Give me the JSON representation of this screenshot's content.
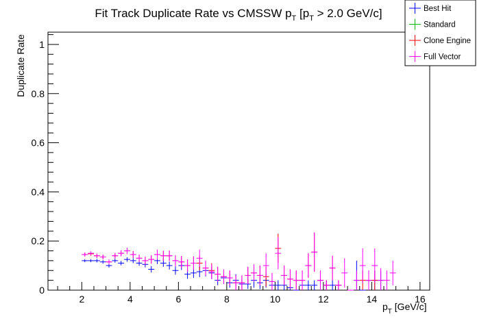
{
  "chart_data": {
    "type": "scatter",
    "title": "Fit Track Duplicate Rate vs CMSSW p_T [p_T > 2.0 GeV/c]",
    "title_main": "Fit Track Duplicate Rate vs CMSSW p",
    "title_sub1": "T",
    "title_mid": " [p",
    "title_sub2": "T",
    "title_end": " > 2.0 GeV/c]",
    "xlabel": "p_T [GeV/c]",
    "xlabel_main": "p",
    "xlabel_sub": "T",
    "xlabel_end": " [GeV/c]",
    "ylabel": "Duplicate Rate",
    "xlim": [
      0.6,
      16.4
    ],
    "ylim": [
      0,
      1.05
    ],
    "xticks": [
      "2",
      "4",
      "6",
      "8",
      "10",
      "12",
      "14",
      "16"
    ],
    "yticks": [
      "0",
      "0.2",
      "0.4",
      "0.6",
      "0.8",
      "1"
    ],
    "xtick_values": [
      2,
      4,
      6,
      8,
      10,
      12,
      14,
      16
    ],
    "ytick_values": [
      0,
      0.2,
      0.4,
      0.6,
      0.8,
      1.0
    ],
    "legend_position": "top-right",
    "bin_width": 0.25,
    "series": [
      {
        "name": "Best Hit",
        "color": "#0000ff",
        "x": [
          2.125,
          2.375,
          2.625,
          2.875,
          3.125,
          3.375,
          3.625,
          3.875,
          4.125,
          4.375,
          4.625,
          4.875,
          5.125,
          5.375,
          5.625,
          5.875,
          6.125,
          6.375,
          6.625,
          6.875,
          7.125,
          7.375,
          7.625,
          7.875,
          8.125,
          8.375,
          8.625,
          8.875,
          9.125,
          9.375,
          9.625,
          9.875,
          10.125,
          10.375,
          10.625,
          10.875,
          11.125,
          11.375,
          11.625,
          11.875,
          12.125,
          12.375,
          12.625,
          13.375,
          13.625,
          13.875,
          14.125,
          14.375
        ],
        "y": [
          0.12,
          0.12,
          0.12,
          0.115,
          0.1,
          0.12,
          0.11,
          0.125,
          0.12,
          0.11,
          0.105,
          0.085,
          0.12,
          0.11,
          0.1,
          0.08,
          0.1,
          0.065,
          0.07,
          0.075,
          0.08,
          0.07,
          0.04,
          0.05,
          0.03,
          0.04,
          0.025,
          0.025,
          0.04,
          0.03,
          0.04,
          0.02,
          0.02,
          0.02,
          0.01,
          0.0,
          0.02,
          0.02,
          0.02,
          0.04,
          0.02,
          0.02,
          0.02,
          0.04,
          0.0,
          0.04,
          0.04,
          0.04
        ],
        "err": [
          0.006,
          0.006,
          0.007,
          0.007,
          0.008,
          0.008,
          0.009,
          0.009,
          0.01,
          0.011,
          0.012,
          0.013,
          0.014,
          0.015,
          0.016,
          0.017,
          0.018,
          0.019,
          0.02,
          0.022,
          0.024,
          0.025,
          0.02,
          0.025,
          0.02,
          0.025,
          0.02,
          0.02,
          0.03,
          0.025,
          0.03,
          0.02,
          0.02,
          0.02,
          0.015,
          0.0,
          0.02,
          0.02,
          0.02,
          0.035,
          0.02,
          0.02,
          0.02,
          0.08,
          0.0,
          0.04,
          0.04,
          0.04
        ]
      },
      {
        "name": "Standard",
        "color": "#00bb00",
        "x": [],
        "y": [],
        "err": []
      },
      {
        "name": "Clone Engine",
        "color": "#ff0000",
        "x": [
          2.125,
          2.375,
          2.625,
          2.875,
          3.125,
          3.375,
          3.625,
          3.875,
          4.125,
          4.375,
          4.625,
          4.875,
          5.125,
          5.375,
          5.625,
          5.875,
          6.125,
          6.375,
          6.625,
          6.875,
          7.125,
          7.375,
          7.625,
          7.875,
          8.125,
          8.375,
          8.625,
          8.875,
          9.125,
          9.375,
          9.625,
          9.875,
          10.125,
          10.375,
          10.625,
          10.875,
          11.125,
          11.375,
          11.625,
          11.875,
          12.125,
          12.375,
          12.625,
          13.625,
          13.875,
          14.125
        ],
        "y": [
          0.145,
          0.148,
          0.14,
          0.135,
          0.115,
          0.14,
          0.15,
          0.16,
          0.145,
          0.13,
          0.12,
          0.125,
          0.145,
          0.14,
          0.14,
          0.12,
          0.115,
          0.1,
          0.11,
          0.11,
          0.09,
          0.08,
          0.065,
          0.055,
          0.05,
          0.03,
          0.03,
          0.06,
          0.07,
          0.06,
          0.055,
          0.035,
          0.17,
          0.06,
          0.045,
          0.04,
          0.04,
          0.1,
          0.155,
          0.04,
          0.02,
          0.09,
          0.02,
          0.04,
          0.04,
          0.04
        ],
        "err": [
          0.008,
          0.008,
          0.009,
          0.009,
          0.01,
          0.011,
          0.012,
          0.013,
          0.014,
          0.015,
          0.016,
          0.017,
          0.018,
          0.02,
          0.021,
          0.022,
          0.024,
          0.025,
          0.027,
          0.03,
          0.03,
          0.03,
          0.03,
          0.03,
          0.03,
          0.03,
          0.03,
          0.035,
          0.035,
          0.04,
          0.04,
          0.035,
          0.06,
          0.04,
          0.04,
          0.04,
          0.04,
          0.05,
          0.08,
          0.04,
          0.02,
          0.05,
          0.02,
          0.04,
          0.04,
          0.04
        ]
      },
      {
        "name": "Full Vector",
        "color": "#ff00ff",
        "x": [
          2.125,
          2.375,
          2.625,
          2.875,
          3.125,
          3.375,
          3.625,
          3.875,
          4.125,
          4.375,
          4.625,
          4.875,
          5.125,
          5.375,
          5.625,
          5.875,
          6.125,
          6.375,
          6.625,
          6.875,
          7.125,
          7.375,
          7.625,
          7.875,
          8.125,
          8.375,
          8.625,
          8.875,
          9.125,
          9.375,
          9.625,
          9.875,
          10.125,
          10.375,
          10.625,
          10.875,
          11.125,
          11.375,
          11.625,
          11.875,
          12.125,
          12.375,
          12.625,
          12.875,
          13.125,
          13.375,
          13.625,
          13.875,
          14.125,
          14.375,
          14.625,
          14.875
        ],
        "y": [
          0.145,
          0.15,
          0.14,
          0.135,
          0.115,
          0.14,
          0.15,
          0.16,
          0.145,
          0.13,
          0.12,
          0.125,
          0.145,
          0.14,
          0.14,
          0.12,
          0.115,
          0.1,
          0.11,
          0.13,
          0.09,
          0.075,
          0.065,
          0.055,
          0.05,
          0.03,
          0.03,
          0.06,
          0.07,
          0.06,
          0.1,
          0.035,
          0.15,
          0.06,
          0.045,
          0.04,
          0.04,
          0.1,
          0.155,
          0.04,
          0.02,
          0.09,
          0.02,
          0.07,
          0.0,
          0.04,
          0.1,
          0.04,
          0.1,
          0.04,
          0.04,
          0.07
        ],
        "err": [
          0.008,
          0.008,
          0.009,
          0.009,
          0.01,
          0.011,
          0.012,
          0.013,
          0.014,
          0.015,
          0.016,
          0.017,
          0.02,
          0.02,
          0.021,
          0.022,
          0.024,
          0.025,
          0.027,
          0.035,
          0.03,
          0.03,
          0.03,
          0.03,
          0.03,
          0.03,
          0.03,
          0.035,
          0.035,
          0.04,
          0.05,
          0.035,
          0.065,
          0.04,
          0.04,
          0.04,
          0.04,
          0.05,
          0.08,
          0.04,
          0.02,
          0.05,
          0.02,
          0.06,
          0.0,
          0.04,
          0.07,
          0.04,
          0.07,
          0.05,
          0.04,
          0.05
        ]
      }
    ]
  }
}
